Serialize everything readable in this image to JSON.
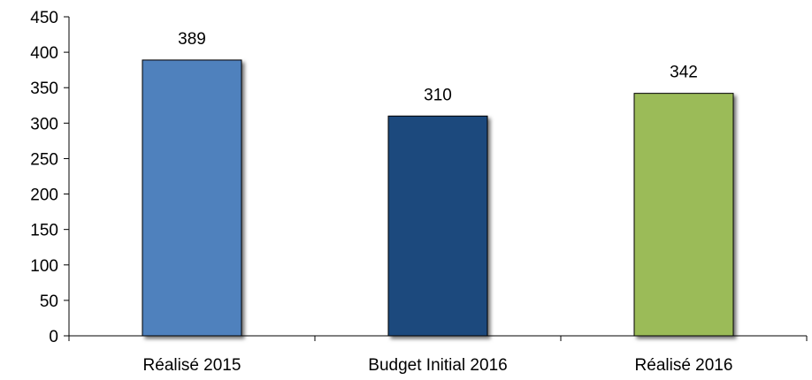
{
  "chart_data": {
    "type": "bar",
    "title": "",
    "xlabel": "",
    "ylabel": "",
    "categories": [
      "Réalisé 2015",
      "Budget Initial 2016",
      "Réalisé 2016"
    ],
    "values": [
      389,
      310,
      342
    ],
    "data_labels": [
      "389",
      "310",
      "342"
    ],
    "bar_colors": [
      "#4F81BD",
      "#1F497D",
      "#9BBB59"
    ],
    "ylim": [
      0,
      450
    ],
    "yticks": [
      0,
      50,
      100,
      150,
      200,
      250,
      300,
      350,
      400,
      450
    ],
    "ytick_labels": [
      "0",
      "50",
      "100",
      "150",
      "200",
      "250",
      "300",
      "350",
      "400",
      "450"
    ],
    "grid": false,
    "legend": "none"
  }
}
